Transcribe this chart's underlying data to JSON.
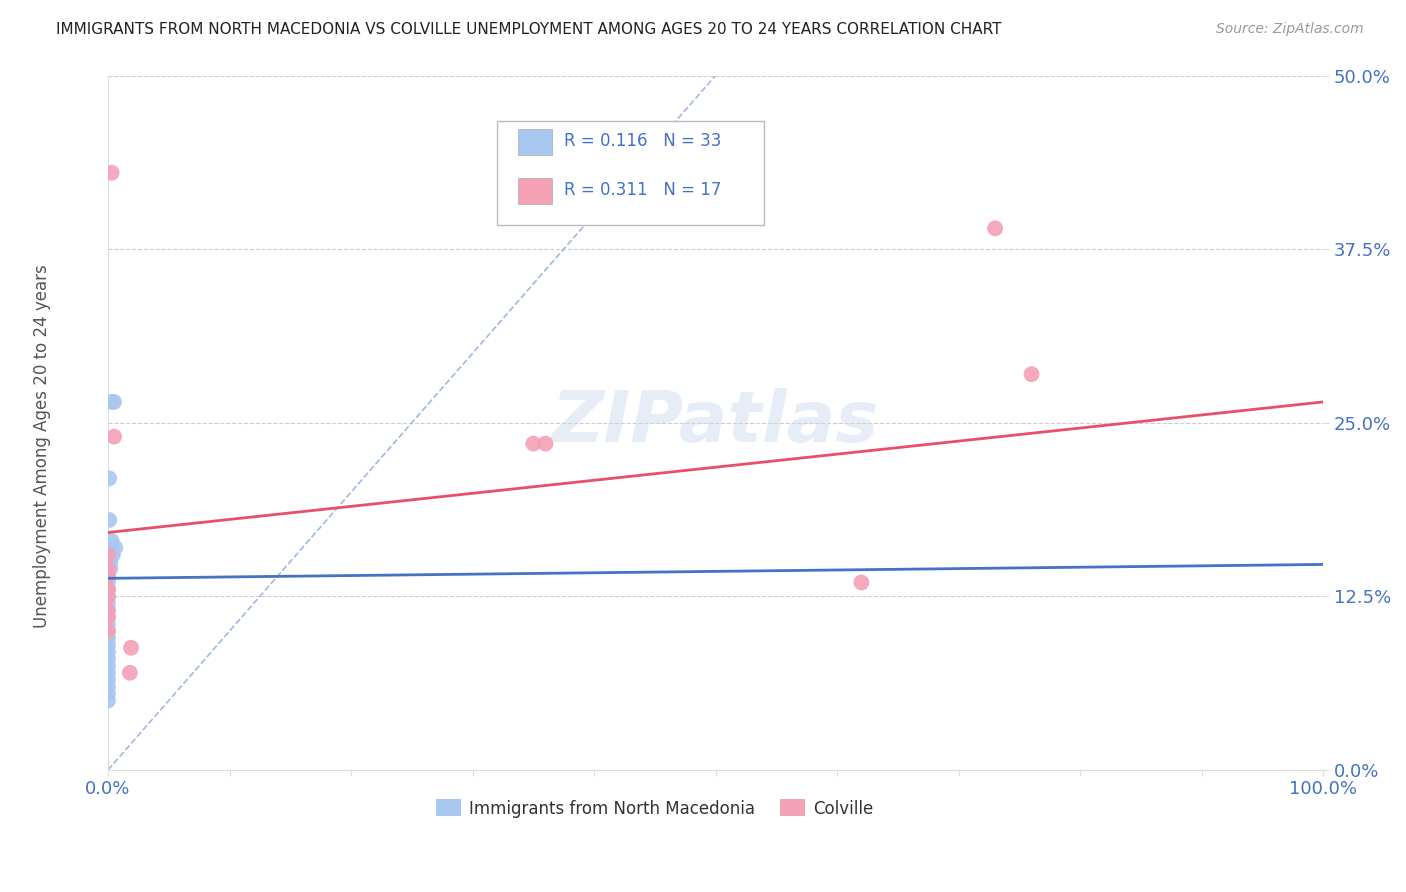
{
  "title": "IMMIGRANTS FROM NORTH MACEDONIA VS COLVILLE UNEMPLOYMENT AMONG AGES 20 TO 24 YEARS CORRELATION CHART",
  "source": "Source: ZipAtlas.com",
  "ylabel": "Unemployment Among Ages 20 to 24 years",
  "xlim": [
    0.0,
    1.0
  ],
  "ylim": [
    0.0,
    0.5
  ],
  "yticks": [
    0.0,
    0.125,
    0.25,
    0.375,
    0.5
  ],
  "ytick_labels": [
    "0.0%",
    "12.5%",
    "25.0%",
    "37.5%",
    "50.0%"
  ],
  "xticks": [
    0.0,
    0.1,
    0.2,
    0.3,
    0.4,
    0.5,
    0.6,
    0.7,
    0.8,
    0.9,
    1.0
  ],
  "xtick_labels": [
    "0.0%",
    "",
    "",
    "",
    "",
    "",
    "",
    "",
    "",
    "",
    "100.0%"
  ],
  "legend_R1": "R = 0.116",
  "legend_N1": "N = 33",
  "legend_R2": "R = 0.311",
  "legend_N2": "N = 17",
  "color_blue": "#A8C8F0",
  "color_pink": "#F4A0B5",
  "regression_blue_color": "#4472C4",
  "regression_pink_color": "#E8506A",
  "diagonal_color": "#A0B8E0",
  "blue_scatter_x": [
    0.0,
    0.0,
    0.0,
    0.0,
    0.0,
    0.0,
    0.0,
    0.0,
    0.0,
    0.0,
    0.0,
    0.0,
    0.0,
    0.0,
    0.0,
    0.0,
    0.0,
    0.0,
    0.0,
    0.0,
    0.0,
    0.0,
    0.001,
    0.001,
    0.001,
    0.002,
    0.002,
    0.002,
    0.003,
    0.003,
    0.004,
    0.005,
    0.006
  ],
  "blue_scatter_y": [
    0.155,
    0.15,
    0.145,
    0.14,
    0.135,
    0.13,
    0.125,
    0.12,
    0.115,
    0.11,
    0.105,
    0.1,
    0.095,
    0.09,
    0.085,
    0.08,
    0.075,
    0.07,
    0.065,
    0.06,
    0.055,
    0.05,
    0.21,
    0.18,
    0.155,
    0.16,
    0.15,
    0.145,
    0.265,
    0.165,
    0.155,
    0.265,
    0.16
  ],
  "pink_scatter_x": [
    0.0,
    0.0,
    0.0,
    0.0,
    0.0,
    0.0,
    0.0,
    0.0,
    0.003,
    0.005,
    0.018,
    0.019,
    0.35,
    0.36,
    0.62,
    0.73,
    0.76
  ],
  "pink_scatter_y": [
    0.155,
    0.145,
    0.14,
    0.13,
    0.125,
    0.115,
    0.11,
    0.1,
    0.43,
    0.24,
    0.07,
    0.088,
    0.235,
    0.235,
    0.135,
    0.39,
    0.285
  ],
  "regression_blue_x0": 0.0,
  "regression_blue_x1": 1.0,
  "regression_blue_y0": 0.138,
  "regression_blue_y1": 0.148,
  "regression_pink_x0": 0.0,
  "regression_pink_x1": 1.0,
  "regression_pink_y0": 0.171,
  "regression_pink_y1": 0.265,
  "background_color": "#FFFFFF",
  "grid_color": "#CCCCCC",
  "watermark_text": "ZIPatlas",
  "bottom_label_blue": "Immigrants from North Macedonia",
  "bottom_label_pink": "Colville"
}
